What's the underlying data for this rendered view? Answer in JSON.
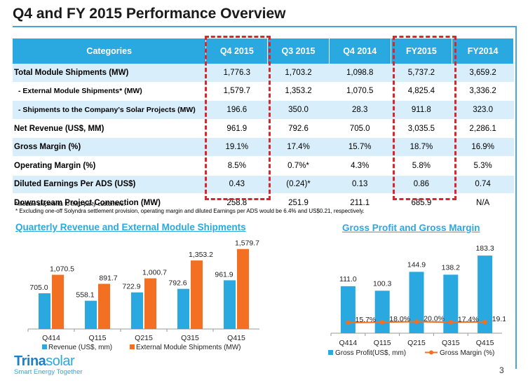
{
  "title": "Q4 and FY 2015 Performance Overview",
  "table": {
    "headers": [
      "Categories",
      "Q4 2015",
      "Q3 2015",
      "Q4 2014",
      "FY2015",
      "FY2014"
    ],
    "rows": [
      {
        "label": "Total Module Shipments (MW)",
        "values": [
          "1,776.3",
          "1,703.2",
          "1,098.8",
          "5,737.2",
          "3,659.2"
        ]
      },
      {
        "label": "- External Module Shipments* (MW)",
        "values": [
          "1,579.7",
          "1,353.2",
          "1,070.5",
          "4,825.4",
          "3,336.2"
        ]
      },
      {
        "label": "- Shipments to the Company's Solar Projects (MW)",
        "values": [
          "196.6",
          "350.0",
          "28.3",
          "911.8",
          "323.0"
        ]
      },
      {
        "label": "Net Revenue (US$, MM)",
        "values": [
          "961.9",
          "792.6",
          "705.0",
          "3,035.5",
          "2,286.1"
        ]
      },
      {
        "label": "Gross Margin (%)",
        "values": [
          "19.1%",
          "17.4%",
          "15.7%",
          "18.7%",
          "16.9%"
        ]
      },
      {
        "label": "Operating Margin (%)",
        "values": [
          "8.5%",
          "0.7%*",
          "4.3%",
          "5.8%",
          "5.3%"
        ]
      },
      {
        "label": "Diluted Earnings Per ADS (US$)",
        "values": [
          "0.43",
          "(0.24)*",
          "0.13",
          "0.86",
          "0.74"
        ]
      },
      {
        "label": "Downstream Project Connection (MW)",
        "values": [
          "258.8",
          "251.9",
          "211.1",
          "685.9",
          "N/A"
        ]
      }
    ]
  },
  "notes": [
    "*Module shipments to third-party  customers.",
    "* Excluding one-off Solyndra settlement provision, operating margin and diluted Earnings per ADS would be 6.4% and US$0.21, respectively."
  ],
  "colors": {
    "blue": "#29a9e0",
    "orange": "#f36f21",
    "highlight": "#d9262c",
    "row_alt": "#d9eefb"
  },
  "chart_data": [
    {
      "type": "bar",
      "title": "Quarterly Revenue and External  Module Shipments",
      "categories": [
        "Q414",
        "Q115",
        "Q215",
        "Q315",
        "Q415"
      ],
      "series": [
        {
          "name": "Revenue (US$, mm)",
          "values": [
            705.0,
            558.1,
            722.9,
            792.6,
            961.9
          ],
          "labels": [
            "705.0",
            "558.1",
            "722.9",
            "792.6",
            "961.9"
          ],
          "color": "#29a9e0"
        },
        {
          "name": "External Module Shipments (MW)",
          "values": [
            1070.5,
            891.7,
            1000.7,
            1353.2,
            1579.7
          ],
          "labels": [
            "1,070.5",
            "891.7",
            "1,000.7",
            "1,353.2",
            "1,579.7"
          ],
          "color": "#f36f21"
        }
      ],
      "ylim": [
        0,
        1700
      ],
      "legend": "bottom"
    },
    {
      "type": "bar",
      "title": "Gross Profit and Gross Margin",
      "categories": [
        "Q414",
        "Q115",
        "Q215",
        "Q315",
        "Q415"
      ],
      "series": [
        {
          "name": "Gross Profit(US$, mm)",
          "type": "bar",
          "values": [
            111.0,
            100.3,
            144.9,
            138.2,
            183.3
          ],
          "labels": [
            "111.0",
            "100.3",
            "144.9",
            "138.2",
            "183.3"
          ],
          "color": "#29a9e0"
        },
        {
          "name": "Gross Margin (%)",
          "type": "line",
          "values": [
            15.7,
            18.0,
            20.0,
            17.4,
            19.1
          ],
          "labels": [
            "15.7%",
            "18.0%",
            "20.0%",
            "17.4%",
            "19.1%"
          ],
          "color": "#f36f21"
        }
      ],
      "ylim": [
        0,
        200
      ],
      "legend": "bottom"
    }
  ],
  "logo": {
    "name_a": "Trina",
    "name_b": "solar",
    "tagline": "Smart Energy Together"
  },
  "page_number": "3"
}
